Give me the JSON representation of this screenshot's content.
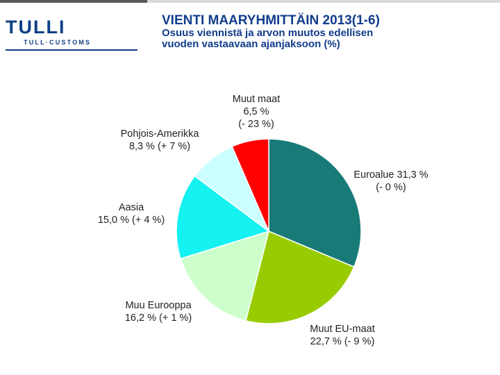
{
  "logo": {
    "name": "TULLI",
    "subtitle": "TULL·CUSTOMS"
  },
  "header": {
    "title": "VIENTI MAARYHMITTÄIN 2013(1-6)",
    "subtitle_line1": "Osuus viennistä ja arvon muutos edellisen",
    "subtitle_line2": "vuoden vastaavaan ajanjaksoon (%)"
  },
  "colors": {
    "brand": "#0e3f86",
    "title": "#113d8c"
  },
  "chart_data": {
    "type": "pie",
    "title": "VIENTI MAARYHMITTÄIN 2013(1-6)",
    "unit": "%",
    "slices": [
      {
        "name": "Euroalue",
        "value": 31.3,
        "value_text": "31,3 %",
        "change_text": "(- 0 %)",
        "color": "#197b78"
      },
      {
        "name": "Muut EU-maat",
        "value": 22.7,
        "value_text": "22,7 %",
        "change_text": "(- 9 %)",
        "color": "#99cc00"
      },
      {
        "name": "Muu Eurooppa",
        "value": 16.2,
        "value_text": "16,2 %",
        "change_text": "(+ 1 %)",
        "color": "#ccffcc"
      },
      {
        "name": "Aasia",
        "value": 15.0,
        "value_text": "15,0 %",
        "change_text": "(+ 4 %)",
        "color": "#13f1f1"
      },
      {
        "name": "Pohjois-Amerikka",
        "value": 8.3,
        "value_text": "8,3 %",
        "change_text": "(+ 7 %)",
        "color": "#ccffff"
      },
      {
        "name": "Muut maat",
        "value": 6.5,
        "value_text": "6,5 %",
        "change_text": "(- 23 %)",
        "color": "#ff0000"
      }
    ],
    "labels": [
      {
        "lines": [
          "Euroalue 31,3 %",
          "(- 0 %)"
        ]
      },
      {
        "lines": [
          "Muut EU-maat",
          "22,7 % (- 9 %)"
        ]
      },
      {
        "lines": [
          "Muu Eurooppa",
          "16,2 % (+ 1 %)"
        ]
      },
      {
        "lines": [
          "Aasia",
          "15,0 % (+ 4 %)"
        ]
      },
      {
        "lines": [
          "Pohjois-Amerikka",
          "8,3 % (+ 7 %)"
        ]
      },
      {
        "lines": [
          "Muut maat",
          "6,5 %",
          "(- 23 %)"
        ]
      }
    ]
  }
}
